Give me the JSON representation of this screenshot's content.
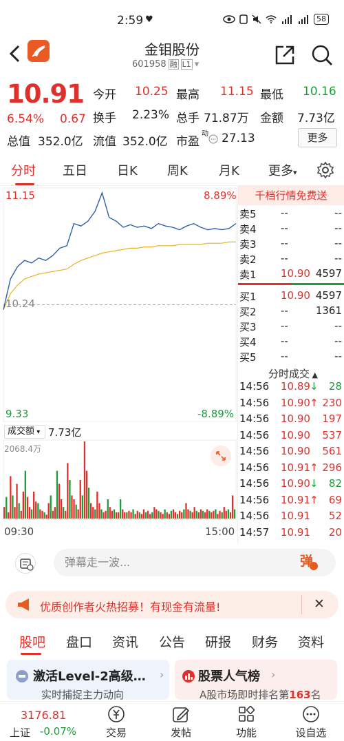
{
  "status_bar": {
    "time": "2:59",
    "heart": "♥",
    "battery": "58"
  },
  "header": {
    "title": "金钼股份",
    "code": "601958",
    "tag1": "融",
    "tag2": "L1",
    "dropdown": "▾"
  },
  "quote": {
    "price": "10.91",
    "change_pct": "6.54%",
    "change": "0.67",
    "open_label": "今开",
    "open": "10.25",
    "high_label": "最高",
    "high": "11.15",
    "low_label": "最低",
    "low": "10.16",
    "turnover_label": "换手",
    "turnover": "2.23%",
    "volume_label": "总手",
    "volume": "71.87万",
    "amount_label": "金额",
    "amount": "7.73亿",
    "mktcap_label": "总值",
    "mktcap": "352.0亿",
    "float_label": "流值",
    "float": "352.0亿",
    "pe_label": "市盈",
    "pe_sup": "动",
    "pe": "27.13",
    "more_label": "更多"
  },
  "tabs": [
    "分时",
    "五日",
    "日K",
    "周K",
    "月K",
    "更多"
  ],
  "chart_data": {
    "type": "line",
    "title": "",
    "y_high": "11.15",
    "y_low": "9.33",
    "y_prev": "10.24",
    "pct_high": "8.89%",
    "pct_low": "-8.89%",
    "x_start": "09:30",
    "x_end": "15:00",
    "ylim": [
      9.33,
      11.15
    ],
    "series": [
      {
        "values": [
          10.2,
          10.45,
          10.55,
          10.6,
          10.58,
          10.62,
          10.6,
          10.64,
          10.7,
          10.72,
          10.9,
          10.88,
          10.92,
          11.0,
          11.15,
          10.95,
          10.92,
          10.87,
          10.89,
          10.87,
          10.88,
          10.86,
          10.9,
          10.88,
          10.87,
          10.85,
          10.88,
          10.9,
          10.87,
          10.85,
          10.86,
          10.85,
          10.86,
          10.9
        ]
      },
      {
        "values": [
          10.2,
          10.33,
          10.4,
          10.45,
          10.47,
          10.49,
          10.5,
          10.51,
          10.52,
          10.53,
          10.57,
          10.6,
          10.62,
          10.64,
          10.66,
          10.67,
          10.68,
          10.69,
          10.7,
          10.7,
          10.71,
          10.71,
          10.72,
          10.72,
          10.72,
          10.73,
          10.73,
          10.73,
          10.73,
          10.74,
          10.74,
          10.74,
          10.75,
          10.75
        ]
      }
    ],
    "volume": {
      "label": "成交额",
      "total": "7.73亿",
      "max_label": "2068.4万",
      "bars": [
        0.15,
        0.28,
        0.08,
        0.55,
        0.3,
        0.15,
        0.45,
        0.2,
        0.1,
        0.35,
        0.62,
        0.28,
        0.15,
        0.12,
        0.35,
        0.22,
        0.2,
        0.12,
        0.1,
        0.08,
        0.05,
        0.2,
        0.3,
        0.1,
        0.15,
        0.62,
        0.45,
        0.25,
        0.15,
        0.1,
        0.72,
        0.5,
        0.3,
        0.25,
        0.18,
        0.12,
        0.5,
        0.3,
        1.0,
        0.62,
        0.4,
        0.2,
        0.15,
        0.12,
        0.35,
        0.2,
        0.12,
        0.08,
        0.1,
        0.25,
        0.15,
        0.1,
        0.12,
        0.08,
        0.08,
        0.25,
        0.12,
        0.08,
        0.08,
        0.1,
        0.08,
        0.12,
        0.06,
        0.1,
        0.08,
        0.06,
        0.12,
        0.08,
        0.1,
        0.06,
        0.08,
        0.15,
        0.12,
        0.1,
        0.08,
        0.06,
        0.12,
        0.08,
        0.06,
        0.1,
        0.12,
        0.08,
        0.06,
        0.1,
        0.08,
        0.12,
        0.2,
        0.12,
        0.1,
        0.08,
        0.15,
        0.1,
        0.08,
        0.12,
        0.1,
        0.08,
        0.12,
        0.1,
        0.08,
        0.1,
        0.12,
        0.06,
        0.1,
        0.08,
        0.15,
        0.1,
        0.12,
        0.08,
        0.3,
        0.12
      ]
    }
  },
  "order_book": {
    "banner": "千档行情免费送",
    "asks": [
      {
        "label": "卖5",
        "price": "--",
        "vol": "--"
      },
      {
        "label": "卖4",
        "price": "--",
        "vol": "--"
      },
      {
        "label": "卖3",
        "price": "--",
        "vol": "--"
      },
      {
        "label": "卖2",
        "price": "--",
        "vol": "--"
      },
      {
        "label": "卖1",
        "price": "10.90",
        "vol": "4597"
      }
    ],
    "bids": [
      {
        "label": "买1",
        "price": "10.90",
        "vol": "4597"
      },
      {
        "label": "买2",
        "price": "--",
        "vol": "1361"
      },
      {
        "label": "买3",
        "price": "--",
        "vol": "--"
      },
      {
        "label": "买4",
        "price": "--",
        "vol": "--"
      },
      {
        "label": "买5",
        "price": "--",
        "vol": "--"
      }
    ],
    "trades_title": "分时成交",
    "trades": [
      {
        "time": "14:56",
        "price": "10.89",
        "arrow": "↓",
        "vol": "28",
        "dir": "down"
      },
      {
        "time": "14:56",
        "price": "10.90",
        "arrow": "↑",
        "vol": "230",
        "dir": "up"
      },
      {
        "time": "14:56",
        "price": "10.90",
        "arrow": "",
        "vol": "197",
        "dir": "up"
      },
      {
        "time": "14:56",
        "price": "10.90",
        "arrow": "",
        "vol": "537",
        "dir": "up"
      },
      {
        "time": "14:56",
        "price": "10.90",
        "arrow": "",
        "vol": "561",
        "dir": "up"
      },
      {
        "time": "14:56",
        "price": "10.91",
        "arrow": "↑",
        "vol": "296",
        "dir": "up"
      },
      {
        "time": "14:56",
        "price": "10.90",
        "arrow": "↓",
        "vol": "82",
        "dir": "down"
      },
      {
        "time": "14:56",
        "price": "10.91",
        "arrow": "↑",
        "vol": "69",
        "dir": "up"
      },
      {
        "time": "14:56",
        "price": "10.91",
        "arrow": "",
        "vol": "52",
        "dir": "up"
      },
      {
        "time": "14:57",
        "price": "10.91",
        "arrow": "",
        "vol": "20",
        "dir": "up"
      }
    ]
  },
  "danmu": {
    "placeholder": "弹幕走一波...",
    "send_label": "弹"
  },
  "notice": {
    "text": "优质创作者火热招募！有现金有流量!",
    "close": "✕"
  },
  "feed_tabs": [
    "股吧",
    "盘口",
    "资讯",
    "公告",
    "研报",
    "财务",
    "资料"
  ],
  "cards": [
    {
      "title": "激活Level-2高级…",
      "arrow": "›",
      "sub": "实时捕捉主力动向"
    },
    {
      "title": "股票人气榜",
      "arrow": "›",
      "sub_prefix": "A股市场即时排名第",
      "rank": "163",
      "sub_suffix": "名"
    }
  ],
  "bottom_nav": {
    "index_value": "3176.81",
    "index_name": "上证",
    "index_change": "-0.07%",
    "items": [
      "交易",
      "发帖",
      "功能",
      "设自选"
    ]
  },
  "colors": {
    "up": "#e0302b",
    "down": "#1a9e3a",
    "avg": "#e6b422",
    "line": "#2f5fa8"
  }
}
